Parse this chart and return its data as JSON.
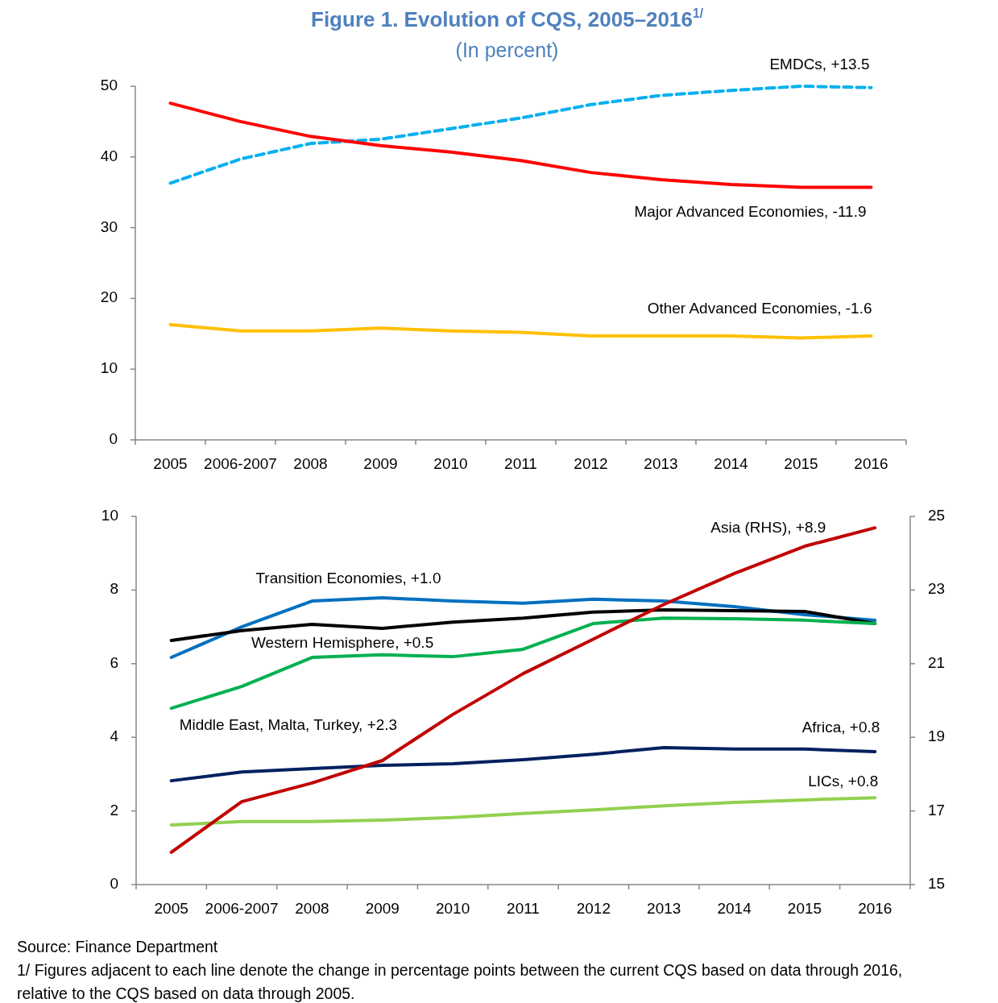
{
  "chart_data": [
    {
      "type": "line",
      "title": "Figure 1. Evolution of CQS, 2005–2016$^{1/}$",
      "subtitle": "(In percent)",
      "categories": [
        "2005",
        "2006-2007",
        "2008",
        "2009",
        "2010",
        "2011",
        "2012",
        "2013",
        "2014",
        "2015",
        "2016"
      ],
      "ylim": [
        0,
        50
      ],
      "yticks": [
        0,
        10,
        20,
        30,
        40,
        50
      ],
      "grid": false,
      "series": [
        {
          "name": "EMDCs, +13.5",
          "color": "#00b0f0",
          "line_style": "dashed",
          "values": [
            36.3,
            39.7,
            41.9,
            42.5,
            44.0,
            45.5,
            47.4,
            48.7,
            49.4,
            50.0,
            49.8
          ]
        },
        {
          "name": "Major Advanced Economies, -11.9",
          "color": "#ff0000",
          "line_style": "solid",
          "values": [
            47.6,
            45.0,
            42.9,
            41.6,
            40.7,
            39.5,
            37.8,
            36.8,
            36.1,
            35.7,
            35.7
          ]
        },
        {
          "name": "Other Advanced Economies, -1.6",
          "color": "#ffc000",
          "line_style": "solid",
          "values": [
            16.3,
            15.4,
            15.4,
            15.8,
            15.4,
            15.2,
            14.7,
            14.7,
            14.7,
            14.4,
            14.7
          ]
        }
      ]
    },
    {
      "type": "line",
      "categories": [
        "2005",
        "2006-2007",
        "2008",
        "2009",
        "2010",
        "2011",
        "2012",
        "2013",
        "2014",
        "2015",
        "2016"
      ],
      "ylim": [
        0,
        10
      ],
      "yticks": [
        0,
        2,
        4,
        6,
        8,
        10
      ],
      "y2lim": [
        15,
        25
      ],
      "y2ticks": [
        15,
        17,
        19,
        21,
        23,
        25
      ],
      "grid": false,
      "annotations": [
        "Source: Finance Department",
        "1/ Figures adjacent to each line denote the change in percentage points between the current CQS based on data through 2016, relative to the CQS based on data through 2005."
      ],
      "series": [
        {
          "name": "Transition Economies, +1.0",
          "color": "#0070c0",
          "values": [
            6.17,
            7.0,
            7.7,
            7.79,
            7.7,
            7.64,
            7.75,
            7.7,
            7.55,
            7.33,
            7.18
          ]
        },
        {
          "name": "Western Hemisphere, +0.5",
          "color": "#000000",
          "values": [
            6.63,
            6.9,
            7.07,
            6.96,
            7.13,
            7.24,
            7.4,
            7.46,
            7.44,
            7.42,
            7.09
          ]
        },
        {
          "name": "Middle East, Malta, Turkey, +2.3",
          "color": "#00b050",
          "values": [
            4.79,
            5.38,
            6.17,
            6.24,
            6.19,
            6.39,
            7.09,
            7.24,
            7.22,
            7.18,
            7.09
          ]
        },
        {
          "name": "Africa, +0.8",
          "color": "#002060",
          "values": [
            2.82,
            3.06,
            3.15,
            3.24,
            3.28,
            3.39,
            3.54,
            3.72,
            3.68,
            3.68,
            3.61
          ]
        },
        {
          "name": "LICs, +0.8",
          "color": "#92d050",
          "values": [
            1.62,
            1.71,
            1.71,
            1.75,
            1.82,
            1.93,
            2.03,
            2.14,
            2.23,
            2.3,
            2.36
          ]
        },
        {
          "name": "Asia (RHS), +8.9",
          "color": "#c00000",
          "axis": "y2",
          "values": [
            15.88,
            17.25,
            17.76,
            18.37,
            19.62,
            20.73,
            21.67,
            22.61,
            23.45,
            24.19,
            24.69
          ]
        }
      ]
    }
  ]
}
